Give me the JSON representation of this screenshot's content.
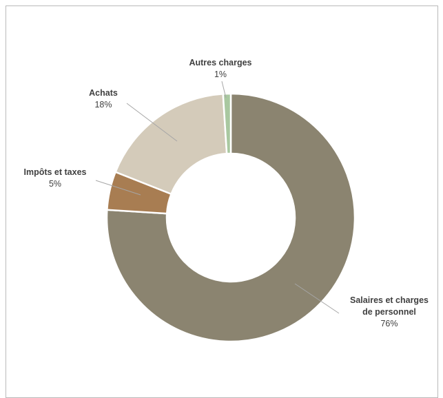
{
  "chart_data": {
    "type": "pie",
    "variant": "donut",
    "title": "",
    "legend": "none",
    "slices": [
      {
        "name": "Salaires et charges de personnel",
        "label_lines": [
          "Salaires et charges",
          "de personnel"
        ],
        "value": 76,
        "value_label": "76%",
        "color": "#8b8470"
      },
      {
        "name": "Impôts et taxes",
        "label_lines": [
          "Impôts et taxes"
        ],
        "value": 5,
        "value_label": "5%",
        "color": "#a87d52"
      },
      {
        "name": "Achats",
        "label_lines": [
          "Achats"
        ],
        "value": 18,
        "value_label": "18%",
        "color": "#d4cbba"
      },
      {
        "name": "Autres charges",
        "label_lines": [
          "Autres charges"
        ],
        "value": 1,
        "value_label": "1%",
        "color": "#a9c8a0"
      }
    ]
  }
}
